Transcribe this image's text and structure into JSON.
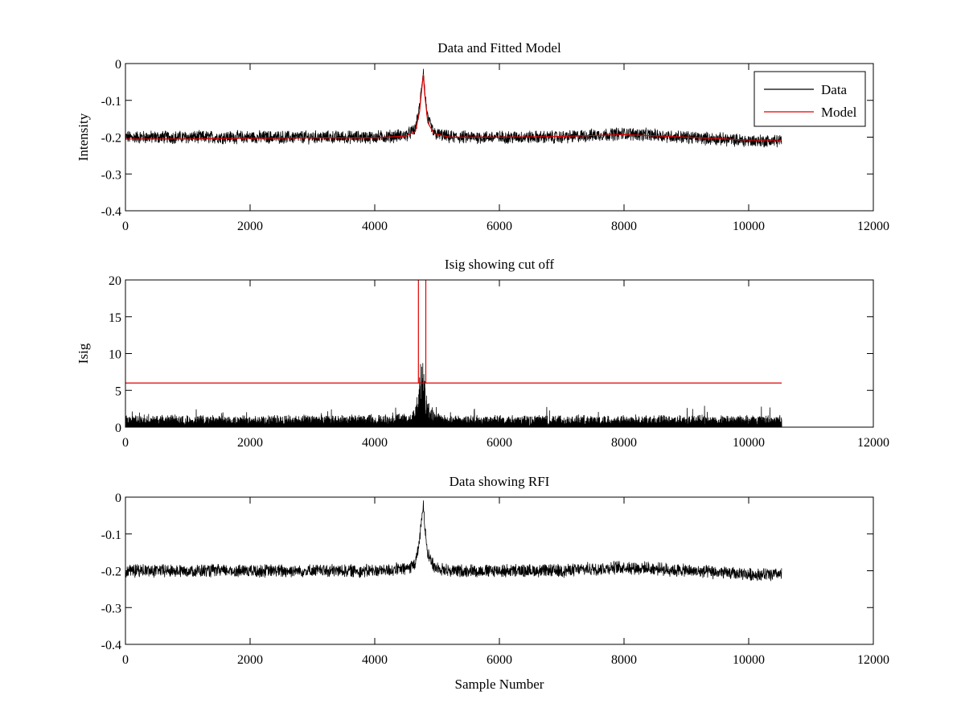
{
  "figure": {
    "background": "#ffffff",
    "colors": {
      "data": "#000000",
      "model": "#e00000"
    }
  },
  "chart_data": [
    {
      "type": "line",
      "title": "Data and Fitted Model",
      "xlabel": "",
      "ylabel": "Intensity",
      "xlim": [
        0,
        12000
      ],
      "ylim": [
        -0.4,
        0
      ],
      "xticks": [
        0,
        2000,
        4000,
        6000,
        8000,
        10000,
        12000
      ],
      "yticks": [
        -0.4,
        -0.3,
        -0.2,
        -0.1,
        0
      ],
      "grid": false,
      "legend": {
        "placement": "top-right",
        "entries": [
          "Data",
          "Model"
        ]
      },
      "series": [
        {
          "name": "Data",
          "color": "#000000",
          "style": "noisy",
          "x": [
            0,
            1000,
            2000,
            3000,
            4000,
            4500,
            4650,
            4720,
            4760,
            4780,
            4800,
            4850,
            4950,
            5200,
            6000,
            7000,
            8000,
            9000,
            10000,
            10530
          ],
          "y": [
            -0.2,
            -0.2,
            -0.2,
            -0.2,
            -0.2,
            -0.195,
            -0.18,
            -0.12,
            -0.05,
            -0.02,
            -0.07,
            -0.15,
            -0.19,
            -0.2,
            -0.2,
            -0.2,
            -0.19,
            -0.2,
            -0.21,
            -0.21
          ],
          "noise_amplitude": 0.015
        },
        {
          "name": "Model",
          "color": "#e00000",
          "style": "smooth",
          "x": [
            0,
            1000,
            2000,
            3000,
            4000,
            4500,
            4650,
            4720,
            4760,
            4780,
            4800,
            4850,
            4950,
            5200,
            6000,
            7000,
            8000,
            9000,
            10000,
            10530
          ],
          "y": [
            -0.205,
            -0.205,
            -0.203,
            -0.202,
            -0.202,
            -0.197,
            -0.185,
            -0.13,
            -0.06,
            -0.03,
            -0.08,
            -0.16,
            -0.19,
            -0.2,
            -0.2,
            -0.198,
            -0.193,
            -0.2,
            -0.208,
            -0.208
          ]
        }
      ]
    },
    {
      "type": "line",
      "title": "Isig showing cut off",
      "xlabel": "",
      "ylabel": "Isig",
      "xlim": [
        0,
        12000
      ],
      "ylim": [
        0,
        20
      ],
      "xticks": [
        0,
        2000,
        4000,
        6000,
        8000,
        10000,
        12000
      ],
      "yticks": [
        0,
        5,
        10,
        15,
        20
      ],
      "grid": false,
      "series": [
        {
          "color": "#000000",
          "style": "abs-noise",
          "x": [
            0,
            4000,
            4600,
            4700,
            4750,
            4780,
            4820,
            4900,
            5100,
            10530
          ],
          "y": [
            0.8,
            0.8,
            1.0,
            3.0,
            6.5,
            5.0,
            3.0,
            1.5,
            0.8,
            0.8
          ],
          "noise_amplitude": 1.0
        },
        {
          "color": "#e00000",
          "style": "threshold",
          "x": [
            0,
            4700,
            4700,
            4700,
            4820,
            4820,
            4820,
            10530
          ],
          "y": [
            6,
            6,
            20,
            6,
            6,
            20,
            6,
            6
          ]
        }
      ]
    },
    {
      "type": "line",
      "title": "Data showing RFI",
      "xlabel": "Sample Number",
      "ylabel": "",
      "xlim": [
        0,
        12000
      ],
      "ylim": [
        -0.4,
        0
      ],
      "xticks": [
        0,
        2000,
        4000,
        6000,
        8000,
        10000,
        12000
      ],
      "yticks": [
        -0.4,
        -0.3,
        -0.2,
        -0.1,
        0
      ],
      "grid": false,
      "series": [
        {
          "color": "#000000",
          "style": "noisy",
          "x": [
            0,
            1000,
            2000,
            3000,
            4000,
            4500,
            4650,
            4720,
            4760,
            4780,
            4800,
            4850,
            4950,
            5200,
            6000,
            7000,
            8000,
            9000,
            10000,
            10530
          ],
          "y": [
            -0.2,
            -0.2,
            -0.2,
            -0.2,
            -0.2,
            -0.195,
            -0.18,
            -0.12,
            -0.05,
            -0.02,
            -0.07,
            -0.15,
            -0.19,
            -0.2,
            -0.2,
            -0.2,
            -0.19,
            -0.2,
            -0.21,
            -0.21
          ],
          "noise_amplitude": 0.015
        }
      ]
    }
  ]
}
